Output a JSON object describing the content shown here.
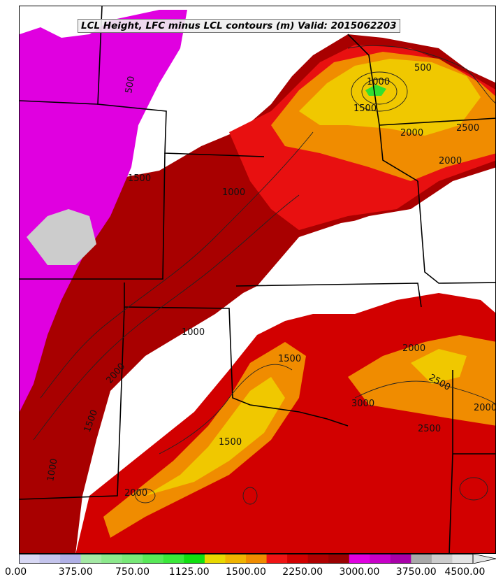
{
  "title": "LCL Height, LFC minus LCL contours (m) Valid: 2015062203",
  "colorbar": {
    "colors": [
      "#d8d8f4",
      "#c4c4ec",
      "#b0b0e6",
      "#a4e8a4",
      "#8ce88c",
      "#78e878",
      "#58e858",
      "#3ae83a",
      "#10e010",
      "#e8d800",
      "#f0b400",
      "#f08c00",
      "#f01414",
      "#d20000",
      "#b00000",
      "#9a0000",
      "#e000e0",
      "#c800c8",
      "#a800a8",
      "#a8a8a8",
      "#cccccc",
      "#e4e4e4"
    ],
    "tick_labels": [
      "0.00",
      "375.00",
      "750.00",
      "1125.00",
      "1500.00",
      "2250.00",
      "3000.00",
      "3750.00",
      "4500.00"
    ]
  },
  "contour_labels": [
    "500",
    "1000",
    "1500",
    "2000",
    "2500",
    "3000",
    "1000",
    "1500",
    "2000",
    "2000",
    "1000",
    "1500",
    "2000",
    "2500",
    "3000",
    "1500",
    "2000",
    "1000",
    "1500",
    "2000",
    "2500",
    "500"
  ]
}
